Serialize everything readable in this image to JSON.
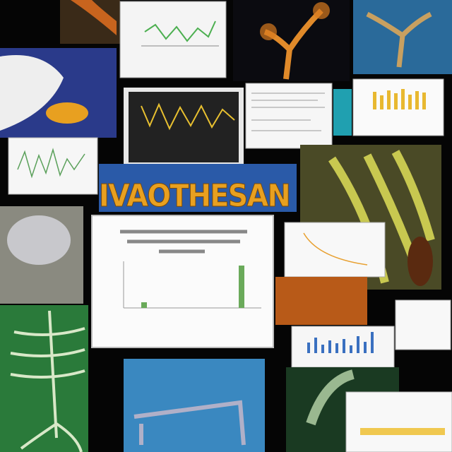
{
  "headline": "IVAOTHESAN"
}
